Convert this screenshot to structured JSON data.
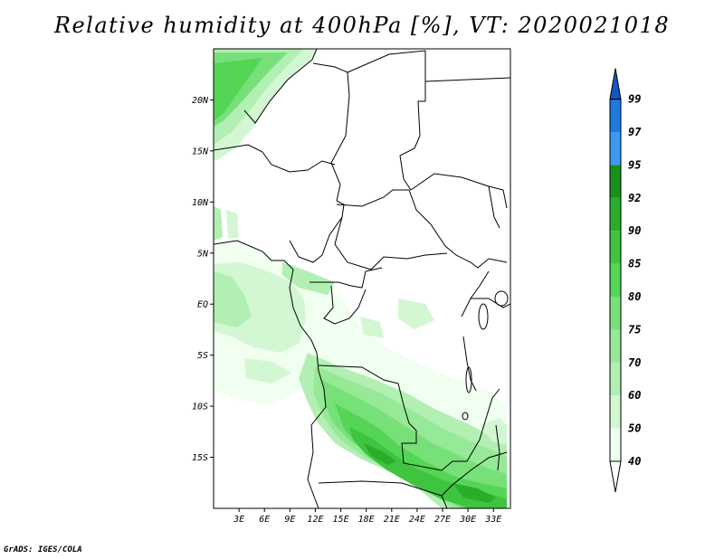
{
  "title": "Relative humidity at 400hPa [%], VT: 2020021018",
  "footer": "GrADS: IGES/COLA",
  "map": {
    "lon_range": [
      0,
      35
    ],
    "lat_range": [
      -20,
      25
    ],
    "lat_labels": [
      "20N",
      "15N",
      "10N",
      "5N",
      "EQ",
      "5S",
      "10S",
      "15S"
    ],
    "lon_labels": [
      "3E",
      "6E",
      "9E",
      "12E",
      "15E",
      "18E",
      "21E",
      "24E",
      "27E",
      "30E",
      "33E"
    ]
  },
  "colorbar": {
    "levels": [
      "40",
      "50",
      "60",
      "70",
      "75",
      "80",
      "85",
      "90",
      "92",
      "95",
      "97",
      "99"
    ],
    "colors": [
      "#f0fff0",
      "#d2f7d2",
      "#b2efb2",
      "#96e996",
      "#78e078",
      "#55d555",
      "#3ec43e",
      "#2aad2a",
      "#188f18",
      "#3a9af0",
      "#1e78de",
      "#1457c4"
    ]
  }
}
